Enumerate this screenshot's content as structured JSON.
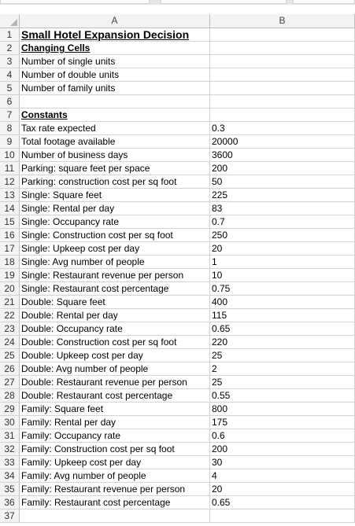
{
  "sheet": {
    "columns": [
      "A",
      "B"
    ],
    "rows": [
      {
        "n": "1",
        "a": "Small Hotel Expansion Decision",
        "b": "",
        "style": "title"
      },
      {
        "n": "2",
        "a": "Changing Cells",
        "b": "",
        "style": "head"
      },
      {
        "n": "3",
        "a": "Number of single units",
        "b": ""
      },
      {
        "n": "4",
        "a": "Number of double units",
        "b": ""
      },
      {
        "n": "5",
        "a": "Number of family units",
        "b": ""
      },
      {
        "n": "6",
        "a": "",
        "b": ""
      },
      {
        "n": "7",
        "a": "Constants",
        "b": "",
        "style": "head"
      },
      {
        "n": "8",
        "a": "Tax rate expected",
        "b": "0.3"
      },
      {
        "n": "9",
        "a": "Total footage available",
        "b": "20000"
      },
      {
        "n": "10",
        "a": "Number of business days",
        "b": "3600"
      },
      {
        "n": "11",
        "a": "Parking: square feet per space",
        "b": "200"
      },
      {
        "n": "12",
        "a": "Parking: construction cost per sq foot",
        "b": "50"
      },
      {
        "n": "13",
        "a": "Single: Square feet",
        "b": "225"
      },
      {
        "n": "14",
        "a": "Single: Rental per day",
        "b": "83"
      },
      {
        "n": "15",
        "a": "Single: Occupancy rate",
        "b": "0.7"
      },
      {
        "n": "16",
        "a": "Single: Construction cost per sq foot",
        "b": "250"
      },
      {
        "n": "17",
        "a": "Single: Upkeep cost per day",
        "b": "20"
      },
      {
        "n": "18",
        "a": "Single: Avg number of people",
        "b": "1"
      },
      {
        "n": "19",
        "a": "Single: Restaurant revenue per person",
        "b": "10"
      },
      {
        "n": "20",
        "a": "Single: Restaurant cost percentage",
        "b": "0.75"
      },
      {
        "n": "21",
        "a": "Double: Square feet",
        "b": "400"
      },
      {
        "n": "22",
        "a": "Double: Rental per day",
        "b": "115"
      },
      {
        "n": "23",
        "a": "Double: Occupancy rate",
        "b": "0.65"
      },
      {
        "n": "24",
        "a": "Double: Construction cost per sq foot",
        "b": "220"
      },
      {
        "n": "25",
        "a": "Double: Upkeep cost per day",
        "b": "25"
      },
      {
        "n": "26",
        "a": "Double: Avg number of people",
        "b": "2"
      },
      {
        "n": "27",
        "a": "Double: Restaurant revenue per person",
        "b": "25"
      },
      {
        "n": "28",
        "a": "Double: Restaurant cost percentage",
        "b": "0.55"
      },
      {
        "n": "29",
        "a": "Family: Square feet",
        "b": "800"
      },
      {
        "n": "30",
        "a": "Family: Rental per day",
        "b": "175"
      },
      {
        "n": "31",
        "a": "Family: Occupancy rate",
        "b": "0.6"
      },
      {
        "n": "32",
        "a": "Family: Construction cost per sq foot",
        "b": "200"
      },
      {
        "n": "33",
        "a": "Family: Upkeep cost per day",
        "b": "30"
      },
      {
        "n": "34",
        "a": "Family: Avg number of people",
        "b": "4"
      },
      {
        "n": "35",
        "a": "Family: Restaurant revenue per person",
        "b": "20"
      },
      {
        "n": "36",
        "a": "Family: Restaurant cost percentage",
        "b": "0.65"
      },
      {
        "n": "37",
        "a": "",
        "b": ""
      }
    ]
  }
}
